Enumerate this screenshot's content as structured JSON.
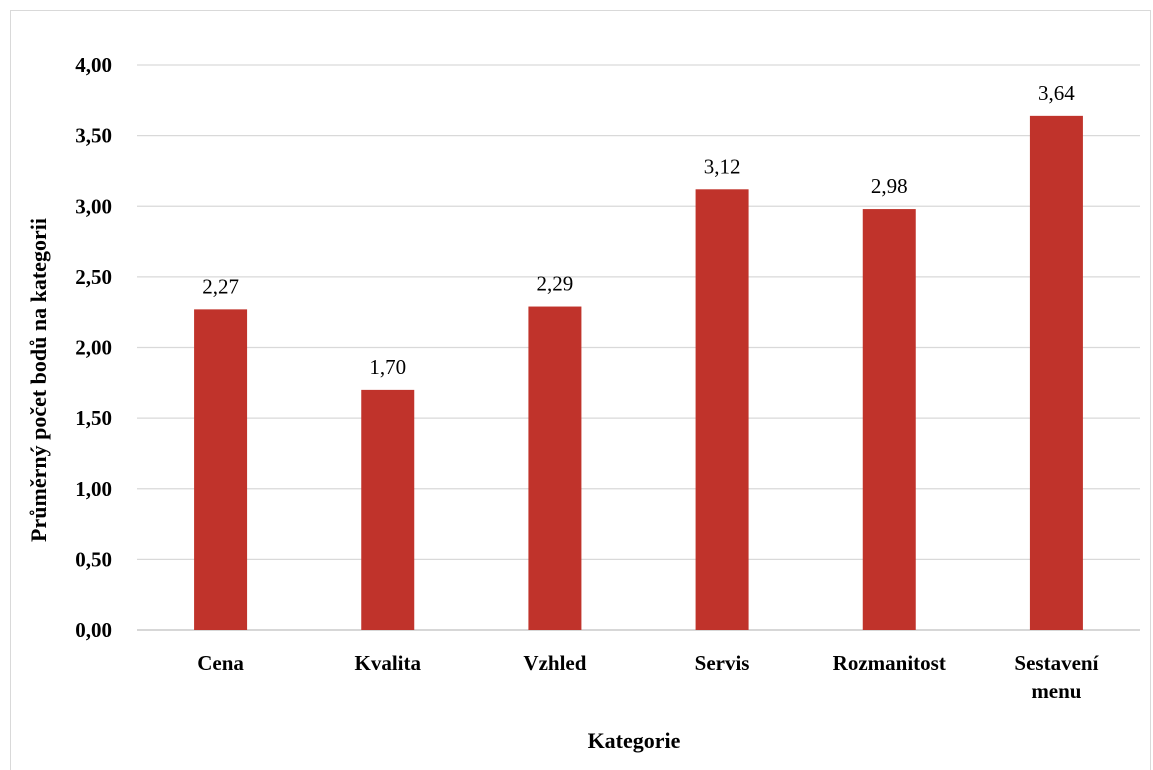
{
  "chart_data": {
    "type": "bar",
    "categories": [
      [
        "Cena"
      ],
      [
        "Kvalita"
      ],
      [
        "Vzhled"
      ],
      [
        "Servis"
      ],
      [
        "Rozmanitost"
      ],
      [
        "Sestavení",
        "menu"
      ]
    ],
    "values": [
      2.27,
      1.7,
      2.29,
      3.12,
      2.98,
      3.64
    ],
    "data_labels": [
      "2,27",
      "1,70",
      "2,29",
      "3,12",
      "2,98",
      "3,64"
    ],
    "xlabel": "Kategorie",
    "ylabel": "Průměrný počet bodů na kategorii",
    "ylim": [
      0,
      4
    ],
    "yticks": [
      0,
      0.5,
      1,
      1.5,
      2,
      2.5,
      3,
      3.5,
      4
    ],
    "ytick_labels": [
      "0,00",
      "0,50",
      "1,00",
      "1,50",
      "2,00",
      "2,50",
      "3,00",
      "3,50",
      "4,00"
    ],
    "grid": true,
    "legend": "none",
    "colors": {
      "bar": "#c0332b",
      "grid": "#d9d9d9",
      "axis": "#bfbfbf"
    }
  }
}
